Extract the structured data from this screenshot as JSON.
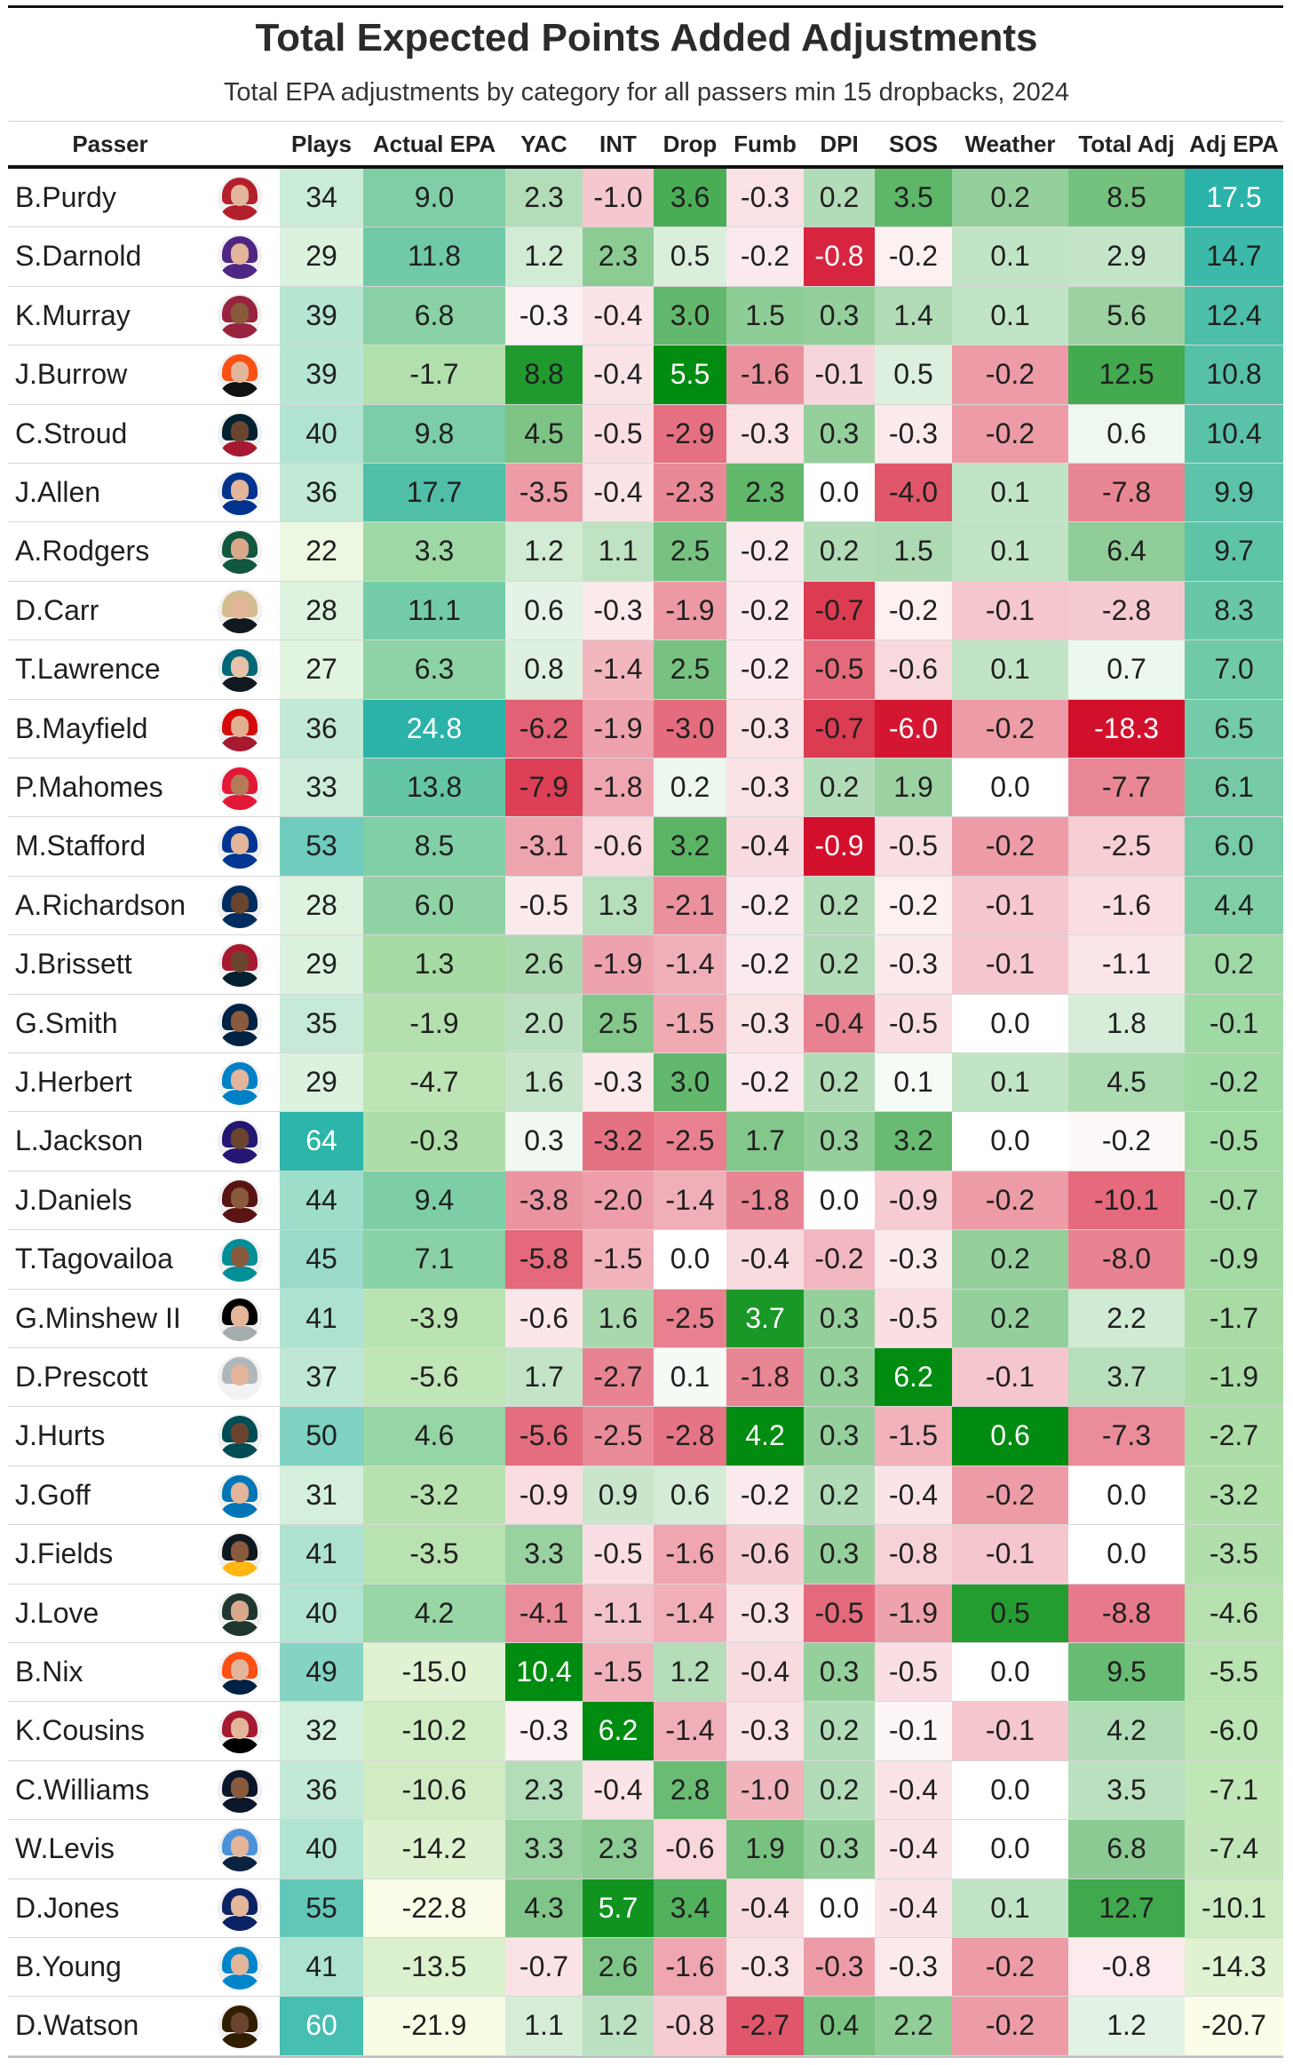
{
  "chart_data": {
    "type": "table",
    "title": "Total Expected Points Added Adjustments",
    "subtitle": "Total EPA adjustments by category for all passers min 15 dropbacks, 2024",
    "columns": [
      "Passer",
      "Plays",
      "Actual EPA",
      "YAC",
      "INT",
      "Drop",
      "Fumb",
      "DPI",
      "SOS",
      "Weather",
      "Total Adj",
      "Adj EPA"
    ],
    "rows": [
      [
        "B.Purdy",
        "34",
        "9.0",
        "2.3",
        "-1.0",
        "3.6",
        "-0.3",
        "0.2",
        "3.5",
        "0.2",
        "8.5",
        "17.5"
      ],
      [
        "S.Darnold",
        "29",
        "11.8",
        "1.2",
        "2.3",
        "0.5",
        "-0.2",
        "-0.8",
        "-0.2",
        "0.1",
        "2.9",
        "14.7"
      ],
      [
        "K.Murray",
        "39",
        "6.8",
        "-0.3",
        "-0.4",
        "3.0",
        "1.5",
        "0.3",
        "1.4",
        "0.1",
        "5.6",
        "12.4"
      ],
      [
        "J.Burrow",
        "39",
        "-1.7",
        "8.8",
        "-0.4",
        "5.5",
        "-1.6",
        "-0.1",
        "0.5",
        "-0.2",
        "12.5",
        "10.8"
      ],
      [
        "C.Stroud",
        "40",
        "9.8",
        "4.5",
        "-0.5",
        "-2.9",
        "-0.3",
        "0.3",
        "-0.3",
        "-0.2",
        "0.6",
        "10.4"
      ],
      [
        "J.Allen",
        "36",
        "17.7",
        "-3.5",
        "-0.4",
        "-2.3",
        "2.3",
        "0.0",
        "-4.0",
        "0.1",
        "-7.8",
        "9.9"
      ],
      [
        "A.Rodgers",
        "22",
        "3.3",
        "1.2",
        "1.1",
        "2.5",
        "-0.2",
        "0.2",
        "1.5",
        "0.1",
        "6.4",
        "9.7"
      ],
      [
        "D.Carr",
        "28",
        "11.1",
        "0.6",
        "-0.3",
        "-1.9",
        "-0.2",
        "-0.7",
        "-0.2",
        "-0.1",
        "-2.8",
        "8.3"
      ],
      [
        "T.Lawrence",
        "27",
        "6.3",
        "0.8",
        "-1.4",
        "2.5",
        "-0.2",
        "-0.5",
        "-0.6",
        "0.1",
        "0.7",
        "7.0"
      ],
      [
        "B.Mayfield",
        "36",
        "24.8",
        "-6.2",
        "-1.9",
        "-3.0",
        "-0.3",
        "-0.7",
        "-6.0",
        "-0.2",
        "-18.3",
        "6.5"
      ],
      [
        "P.Mahomes",
        "33",
        "13.8",
        "-7.9",
        "-1.8",
        "0.2",
        "-0.3",
        "0.2",
        "1.9",
        "0.0",
        "-7.7",
        "6.1"
      ],
      [
        "M.Stafford",
        "53",
        "8.5",
        "-3.1",
        "-0.6",
        "3.2",
        "-0.4",
        "-0.9",
        "-0.5",
        "-0.2",
        "-2.5",
        "6.0"
      ],
      [
        "A.Richardson",
        "28",
        "6.0",
        "-0.5",
        "1.3",
        "-2.1",
        "-0.2",
        "0.2",
        "-0.2",
        "-0.1",
        "-1.6",
        "4.4"
      ],
      [
        "J.Brissett",
        "29",
        "1.3",
        "2.6",
        "-1.9",
        "-1.4",
        "-0.2",
        "0.2",
        "-0.3",
        "-0.1",
        "-1.1",
        "0.2"
      ],
      [
        "G.Smith",
        "35",
        "-1.9",
        "2.0",
        "2.5",
        "-1.5",
        "-0.3",
        "-0.4",
        "-0.5",
        "0.0",
        "1.8",
        "-0.1"
      ],
      [
        "J.Herbert",
        "29",
        "-4.7",
        "1.6",
        "-0.3",
        "3.0",
        "-0.2",
        "0.2",
        "0.1",
        "0.1",
        "4.5",
        "-0.2"
      ],
      [
        "L.Jackson",
        "64",
        "-0.3",
        "0.3",
        "-3.2",
        "-2.5",
        "1.7",
        "0.3",
        "3.2",
        "0.0",
        "-0.2",
        "-0.5"
      ],
      [
        "J.Daniels",
        "44",
        "9.4",
        "-3.8",
        "-2.0",
        "-1.4",
        "-1.8",
        "0.0",
        "-0.9",
        "-0.2",
        "-10.1",
        "-0.7"
      ],
      [
        "T.Tagovailoa",
        "45",
        "7.1",
        "-5.8",
        "-1.5",
        "0.0",
        "-0.4",
        "-0.2",
        "-0.3",
        "0.2",
        "-8.0",
        "-0.9"
      ],
      [
        "G.Minshew II",
        "41",
        "-3.9",
        "-0.6",
        "1.6",
        "-2.5",
        "3.7",
        "0.3",
        "-0.5",
        "0.2",
        "2.2",
        "-1.7"
      ],
      [
        "D.Prescott",
        "37",
        "-5.6",
        "1.7",
        "-2.7",
        "0.1",
        "-1.8",
        "0.3",
        "6.2",
        "-0.1",
        "3.7",
        "-1.9"
      ],
      [
        "J.Hurts",
        "50",
        "4.6",
        "-5.6",
        "-2.5",
        "-2.8",
        "4.2",
        "0.3",
        "-1.5",
        "0.6",
        "-7.3",
        "-2.7"
      ],
      [
        "J.Goff",
        "31",
        "-3.2",
        "-0.9",
        "0.9",
        "0.6",
        "-0.2",
        "0.2",
        "-0.4",
        "-0.2",
        "0.0",
        "-3.2"
      ],
      [
        "J.Fields",
        "41",
        "-3.5",
        "3.3",
        "-0.5",
        "-1.6",
        "-0.6",
        "0.3",
        "-0.8",
        "-0.1",
        "0.0",
        "-3.5"
      ],
      [
        "J.Love",
        "40",
        "4.2",
        "-4.1",
        "-1.1",
        "-1.4",
        "-0.3",
        "-0.5",
        "-1.9",
        "0.5",
        "-8.8",
        "-4.6"
      ],
      [
        "B.Nix",
        "49",
        "-15.0",
        "10.4",
        "-1.5",
        "1.2",
        "-0.4",
        "0.3",
        "-0.5",
        "0.0",
        "9.5",
        "-5.5"
      ],
      [
        "K.Cousins",
        "32",
        "-10.2",
        "-0.3",
        "6.2",
        "-1.4",
        "-0.3",
        "0.2",
        "-0.1",
        "-0.1",
        "4.2",
        "-6.0"
      ],
      [
        "C.Williams",
        "36",
        "-10.6",
        "2.3",
        "-0.4",
        "2.8",
        "-1.0",
        "0.2",
        "-0.4",
        "0.0",
        "3.5",
        "-7.1"
      ],
      [
        "W.Levis",
        "40",
        "-14.2",
        "3.3",
        "2.3",
        "-0.6",
        "1.9",
        "0.3",
        "-0.4",
        "0.0",
        "6.8",
        "-7.4"
      ],
      [
        "D.Jones",
        "55",
        "-22.8",
        "4.3",
        "5.7",
        "3.4",
        "-0.4",
        "0.0",
        "-0.4",
        "0.1",
        "12.7",
        "-10.1"
      ],
      [
        "B.Young",
        "41",
        "-13.5",
        "-0.7",
        "2.6",
        "-1.6",
        "-0.3",
        "-0.3",
        "-0.3",
        "-0.2",
        "-0.8",
        "-14.3"
      ],
      [
        "D.Watson",
        "60",
        "-21.9",
        "1.1",
        "1.2",
        "-0.8",
        "-2.7",
        "0.4",
        "2.2",
        "-0.2",
        "1.2",
        "-20.7"
      ]
    ],
    "avatars": [
      {
        "helmet": "#b3202c",
        "jersey": "#b3202c",
        "skin": "#e3b59a"
      },
      {
        "helmet": "#4f2683",
        "jersey": "#4f2683",
        "skin": "#e3b59a"
      },
      {
        "helmet": "#97233f",
        "jersey": "#97233f",
        "skin": "#8a5a3c"
      },
      {
        "helmet": "#fb4f14",
        "jersey": "#111111",
        "skin": "#e3b59a"
      },
      {
        "helmet": "#03202f",
        "jersey": "#a71930",
        "skin": "#6b4430"
      },
      {
        "helmet": "#00338d",
        "jersey": "#00338d",
        "skin": "#e3b59a"
      },
      {
        "helmet": "#125740",
        "jersey": "#125740",
        "skin": "#d9a98c"
      },
      {
        "helmet": "#d3bc8d",
        "jersey": "#101820",
        "skin": "#e3b59a"
      },
      {
        "helmet": "#006778",
        "jersey": "#101820",
        "skin": "#e8c2a8"
      },
      {
        "helmet": "#d50a0a",
        "jersey": "#a71930",
        "skin": "#e0b090"
      },
      {
        "helmet": "#e31837",
        "jersey": "#e31837",
        "skin": "#b47b58"
      },
      {
        "helmet": "#003594",
        "jersey": "#003594",
        "skin": "#e3b59a"
      },
      {
        "helmet": "#002c5f",
        "jersey": "#002c5f",
        "skin": "#6b4430"
      },
      {
        "helmet": "#a71930",
        "jersey": "#03202f",
        "skin": "#6b4430"
      },
      {
        "helmet": "#002244",
        "jersey": "#002244",
        "skin": "#8a5a3c"
      },
      {
        "helmet": "#0080c6",
        "jersey": "#0080c6",
        "skin": "#e3b59a"
      },
      {
        "helmet": "#241773",
        "jersey": "#241773",
        "skin": "#6b4430"
      },
      {
        "helmet": "#5a1414",
        "jersey": "#5a1414",
        "skin": "#8a5a3c"
      },
      {
        "helmet": "#008e97",
        "jersey": "#008e97",
        "skin": "#8a5a3c"
      },
      {
        "helmet": "#000000",
        "jersey": "#a5acaf",
        "skin": "#e3b59a"
      },
      {
        "helmet": "#b0b7bc",
        "jersey": "#f2f2f2",
        "skin": "#e3b59a"
      },
      {
        "helmet": "#004c54",
        "jersey": "#004c54",
        "skin": "#6b4430"
      },
      {
        "helmet": "#0076b6",
        "jersey": "#0076b6",
        "skin": "#e3b59a"
      },
      {
        "helmet": "#101820",
        "jersey": "#ffb612",
        "skin": "#8a5a3c"
      },
      {
        "helmet": "#203731",
        "jersey": "#203731",
        "skin": "#d9a98c"
      },
      {
        "helmet": "#fb4f14",
        "jersey": "#002244",
        "skin": "#e3b59a"
      },
      {
        "helmet": "#a71930",
        "jersey": "#000000",
        "skin": "#e3b59a"
      },
      {
        "helmet": "#0b162a",
        "jersey": "#0b162a",
        "skin": "#8a5a3c"
      },
      {
        "helmet": "#4b92db",
        "jersey": "#0c2340",
        "skin": "#e3b59a"
      },
      {
        "helmet": "#0b2265",
        "jersey": "#0b2265",
        "skin": "#e3b59a"
      },
      {
        "helmet": "#0085ca",
        "jersey": "#0085ca",
        "skin": "#e3b59a"
      },
      {
        "helmet": "#311d00",
        "jersey": "#311d00",
        "skin": "#6b4430"
      }
    ],
    "colors": {
      "positive_strong": "#008c10",
      "negative_strong": "#d3102c",
      "neutral": "#ffffff",
      "plays_high": "#2cb5a8",
      "plays_low": "#f6fbe6",
      "epa_low": "#fbfde8",
      "epa_mid": "#a9dca4",
      "epa_high": "#2bb3aa"
    }
  }
}
